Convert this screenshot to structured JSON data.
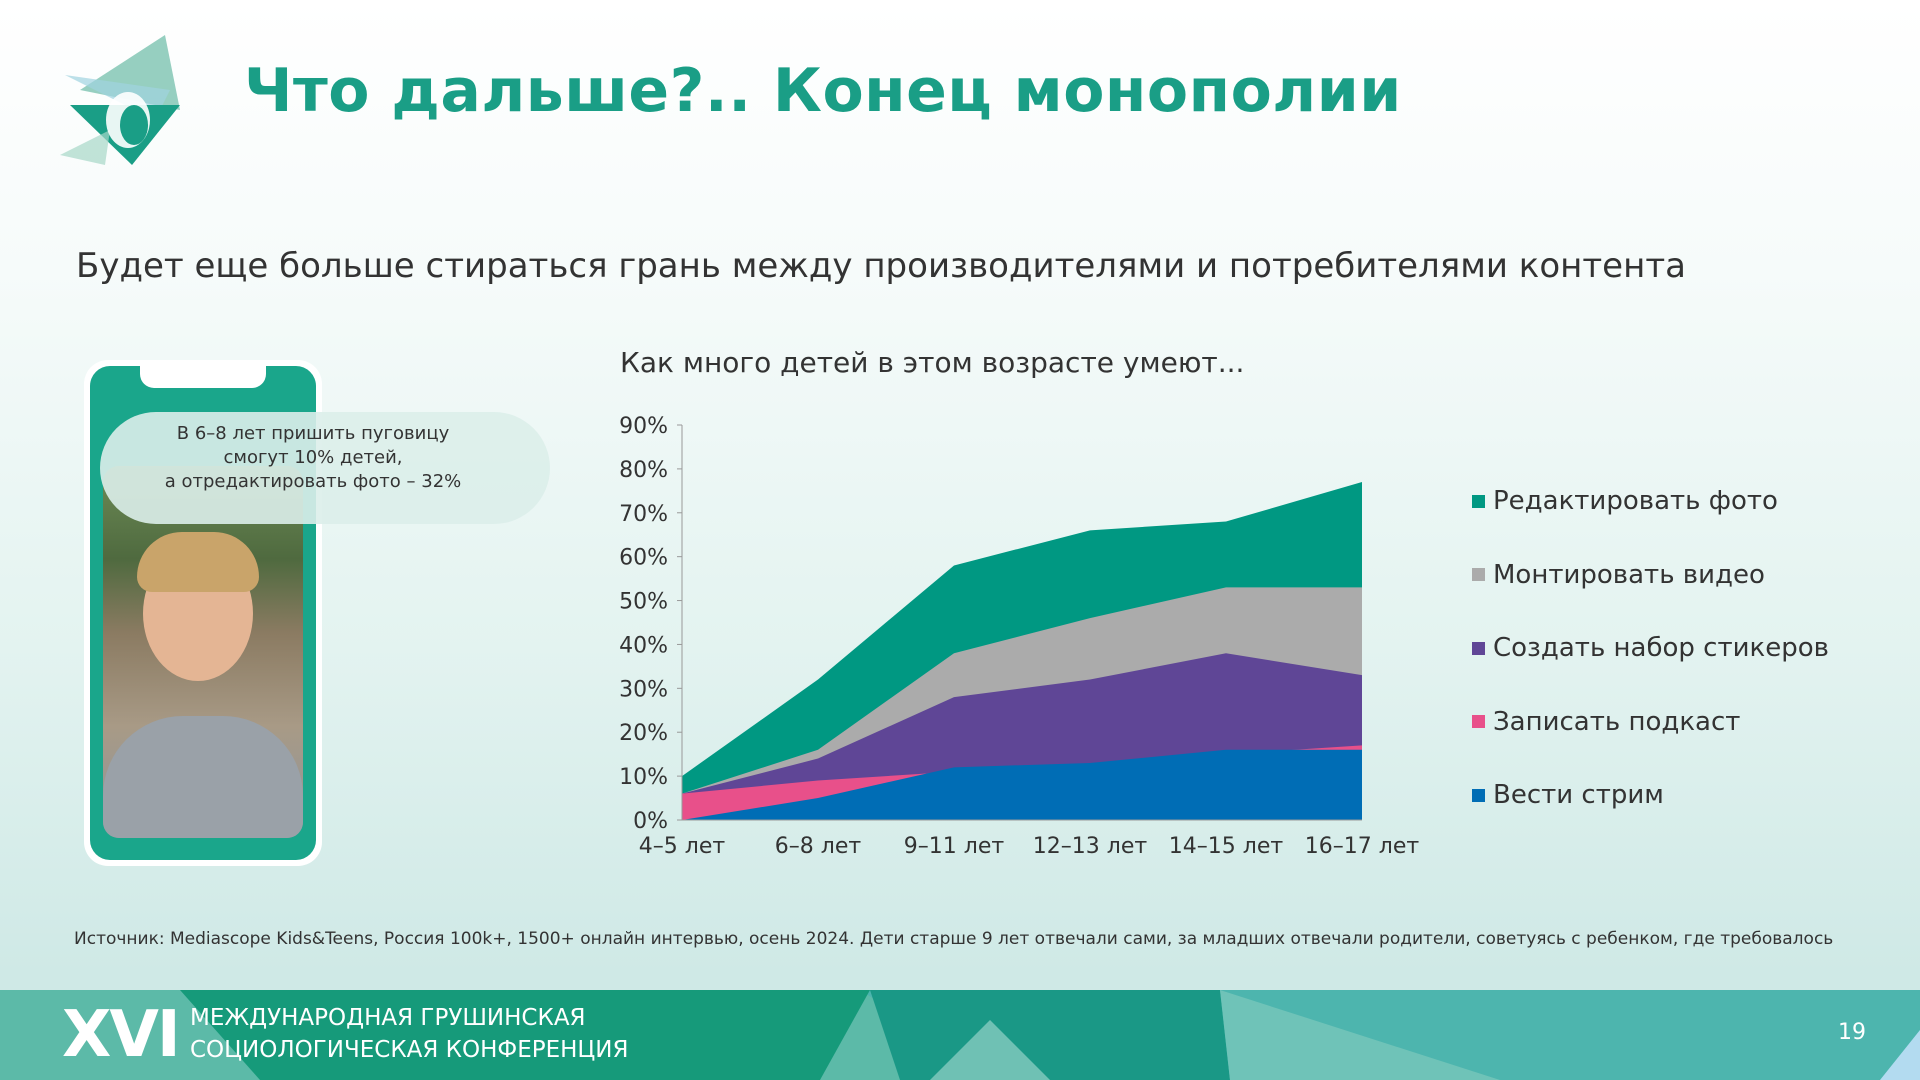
{
  "header": {
    "title": "Что дальше?.. Конец монополии",
    "logo_alt": "Грушинская конференция"
  },
  "subtitle": "Будет еще больше стираться грань между производителями и потребителями контента",
  "callout": {
    "line1": "В 6–8 лет пришить пуговицу",
    "line2": "смогут 10% детей,",
    "line3": "а отредактировать фото – 32%"
  },
  "chart_data": {
    "type": "area",
    "title": "Как много детей в этом возрасте умеют...",
    "categories": [
      "4–5 лет",
      "6–8 лет",
      "9–11 лет",
      "12–13 лет",
      "14–15 лет",
      "16–17 лет"
    ],
    "yticks": [
      "0%",
      "10%",
      "20%",
      "30%",
      "40%",
      "50%",
      "60%",
      "70%",
      "80%",
      "90%"
    ],
    "ylim": [
      0,
      90
    ],
    "ylabel": "",
    "xlabel": "",
    "legend_position": "right",
    "series": [
      {
        "name": "Редактировать фото",
        "color": "#009882",
        "values": [
          10,
          32,
          58,
          66,
          68,
          77
        ]
      },
      {
        "name": "Монтировать видео",
        "color": "#ababab",
        "values": [
          6,
          16,
          38,
          46,
          53,
          53
        ]
      },
      {
        "name": "Создать набор стикеров",
        "color": "#5f4696",
        "values": [
          6,
          14,
          28,
          32,
          38,
          33
        ]
      },
      {
        "name": "Записать подкаст",
        "color": "#e8508a",
        "values": [
          6,
          9,
          11,
          12,
          15,
          17
        ]
      },
      {
        "name": "Вести стрим",
        "color": "#006db5",
        "values": [
          0,
          5,
          12,
          13,
          16,
          16
        ]
      }
    ]
  },
  "source": "Источник: Mediascope Kids&Teens, Россия 100k+, 1500+ онлайн интервью, осень 2024. Дети старше 9 лет отвечали сами, за младших отвечали родители, советуясь с ребенком, где требовалось",
  "footer": {
    "numeral": "XVI",
    "line1": "МЕЖДУНАРОДНАЯ ГРУШИНСКАЯ",
    "line2": "СОЦИОЛОГИЧЕСКАЯ КОНФЕРЕНЦИЯ",
    "page": "19"
  }
}
